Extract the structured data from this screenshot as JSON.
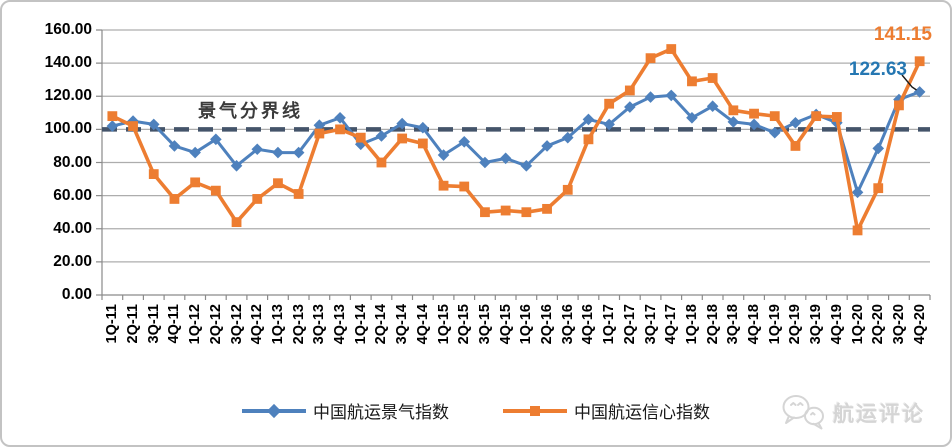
{
  "chart_data": {
    "type": "line",
    "title": "",
    "categories": [
      "1Q-11",
      "2Q-11",
      "3Q-11",
      "4Q-11",
      "1Q-12",
      "2Q-12",
      "3Q-12",
      "4Q-12",
      "1Q-13",
      "2Q-13",
      "3Q-13",
      "4Q-13",
      "1Q-14",
      "2Q-14",
      "3Q-14",
      "4Q-14",
      "1Q-15",
      "2Q-15",
      "3Q-15",
      "4Q-15",
      "1Q-16",
      "2Q-16",
      "3Q-16",
      "4Q-16",
      "1Q-17",
      "2Q-17",
      "3Q-17",
      "4Q-17",
      "1Q-18",
      "2Q-18",
      "3Q-18",
      "4Q-18",
      "1Q-19",
      "2Q-19",
      "3Q-19",
      "4Q-19",
      "1Q-20",
      "2Q-20",
      "3Q-20",
      "4Q-20"
    ],
    "series": [
      {
        "name": "中国航运景气指数",
        "marker": "diamond",
        "color": "#4E81BD",
        "values": [
          102,
          105,
          103,
          90,
          86,
          94,
          78,
          88,
          86,
          86,
          102.5,
          107,
          91,
          96,
          103.5,
          101,
          84.5,
          92.5,
          80,
          82.5,
          78,
          90,
          95,
          106,
          103,
          113.5,
          119.5,
          120.5,
          107,
          114,
          104.5,
          103,
          98,
          104,
          109,
          104,
          62,
          88.5,
          118,
          122.63
        ]
      },
      {
        "name": "中国航运信心指数",
        "marker": "square",
        "color": "#ED7D31",
        "values": [
          108,
          102,
          73,
          58,
          68,
          63,
          44,
          58,
          67.5,
          61,
          97.5,
          100,
          95,
          80,
          94.5,
          91.5,
          66,
          65.5,
          50,
          51,
          50,
          52,
          63.5,
          94,
          115.5,
          123.5,
          143,
          148.5,
          129,
          131,
          111.5,
          109.5,
          108,
          90,
          108,
          107.5,
          39,
          64.5,
          114.5,
          141.15
        ]
      }
    ],
    "reference_line": {
      "value": 100,
      "label": "景气分界线",
      "style": "dashed",
      "color": "#44546A"
    },
    "end_labels": [
      {
        "series": "中国航运信心指数",
        "text": "141.15",
        "color": "#ED7D31"
      },
      {
        "series": "中国航运景气指数",
        "text": "122.63",
        "color": "#2577B2"
      }
    ],
    "y_axis": {
      "min": 0,
      "max": 160,
      "step": 20,
      "tick_labels": [
        "160.00",
        "140.00",
        "120.00",
        "100.00",
        "80.00",
        "60.00",
        "40.00",
        "20.00",
        "0.00"
      ]
    },
    "legend_position": "bottom",
    "grid": true
  },
  "watermark": {
    "text": "航运评论",
    "icon": "wechat-bubbles-logo"
  }
}
